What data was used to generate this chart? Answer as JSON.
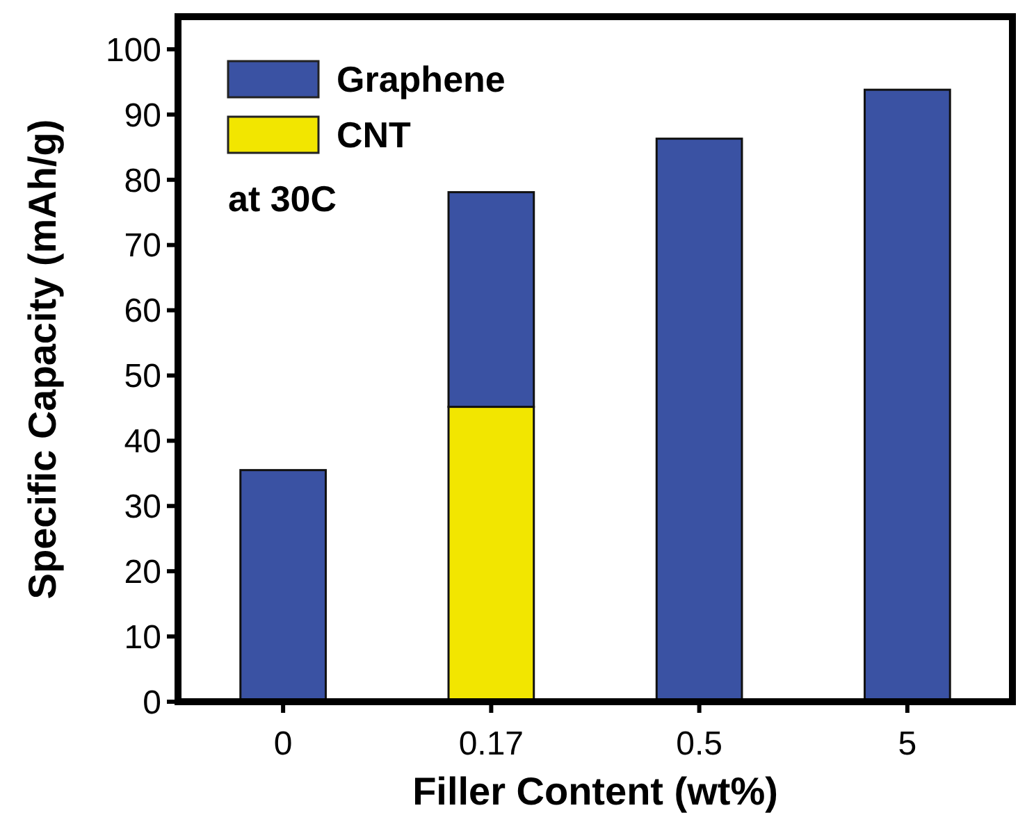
{
  "chart_data": {
    "type": "bar",
    "stacked": true,
    "xlabel": "Filler Content (wt%)",
    "ylabel": "Specific Capacity (mAh/g)",
    "categories": [
      "0",
      "0.17",
      "0.5",
      "5"
    ],
    "series": [
      {
        "name": "CNT",
        "color": "#f2e600",
        "values": [
          null,
          45.2,
          null,
          null
        ]
      },
      {
        "name": "Graphene",
        "color": "#3a52a3",
        "values": [
          35.5,
          32.9,
          86.3,
          93.8
        ]
      }
    ],
    "ylim": [
      0,
      105
    ],
    "yticks": [
      0,
      10,
      20,
      30,
      40,
      50,
      60,
      70,
      80,
      90,
      100
    ],
    "legend": "top left",
    "annotations": [
      "at 30C"
    ]
  }
}
